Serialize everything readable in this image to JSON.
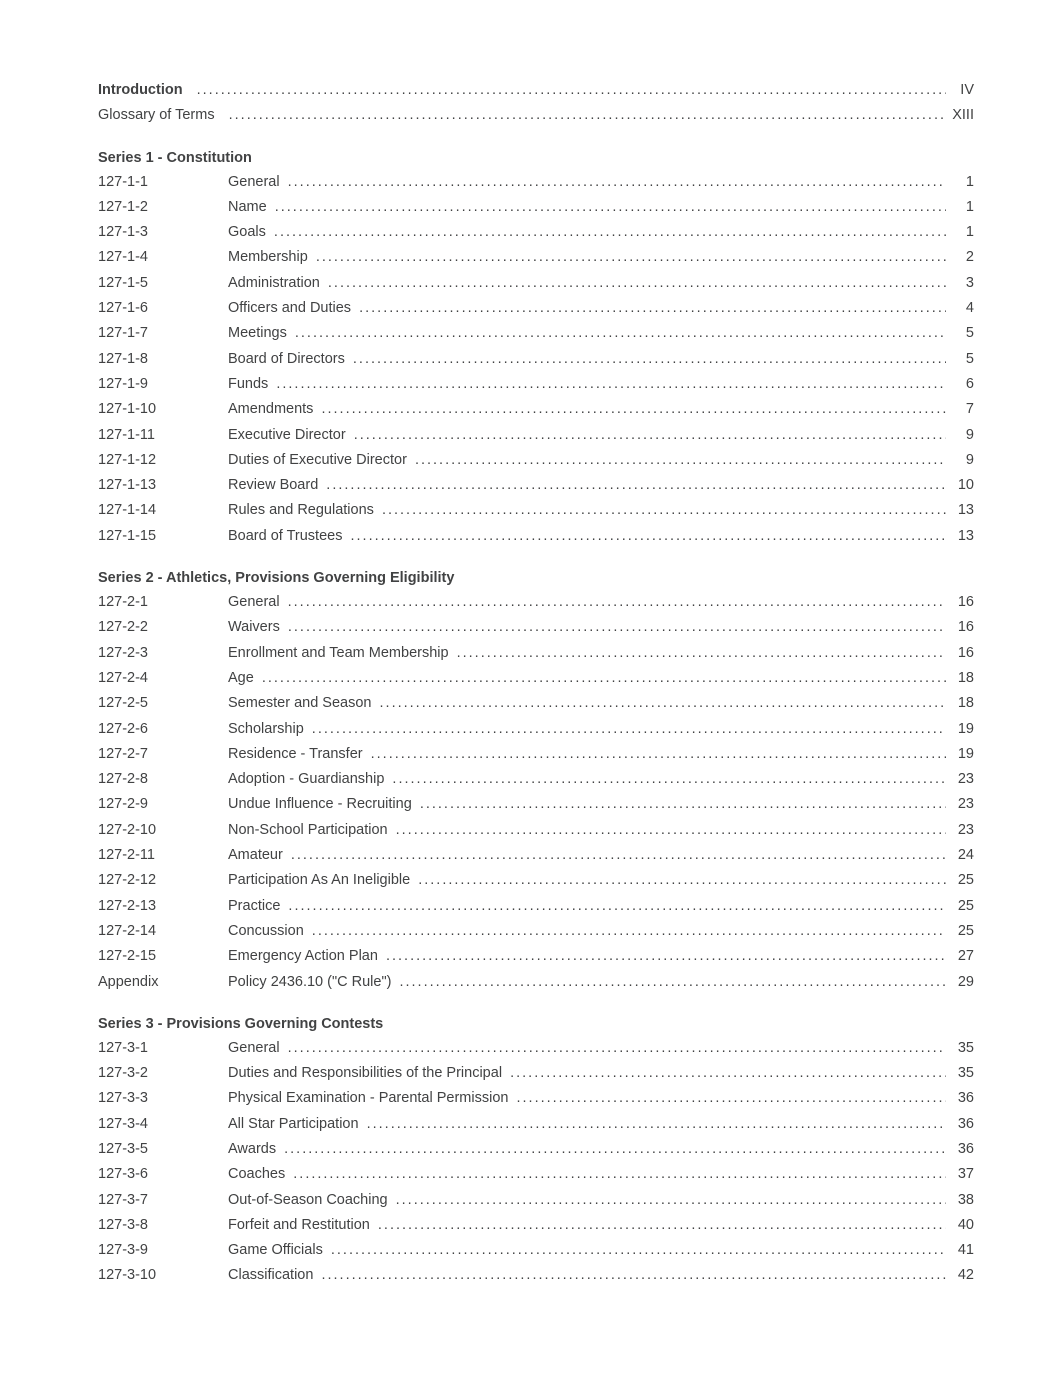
{
  "colors": {
    "text": "#414243",
    "background": "#ffffff"
  },
  "typography": {
    "font_family": "Arial, Helvetica, sans-serif",
    "base_fontsize_pt": 11,
    "heading_weight": 700,
    "body_weight": 400
  },
  "intro": [
    {
      "label": "Introduction",
      "bold": true,
      "page": "IV"
    },
    {
      "label": "Glossary of Terms",
      "bold": false,
      "page": "XIII"
    }
  ],
  "sections": [
    {
      "title": "Series 1 - Constitution",
      "entries": [
        {
          "code": "127-1-1",
          "title": "General",
          "page": "1"
        },
        {
          "code": "127-1-2",
          "title": "Name",
          "page": "1"
        },
        {
          "code": "127-1-3",
          "title": "Goals",
          "page": "1"
        },
        {
          "code": "127-1-4",
          "title": "Membership",
          "page": "2"
        },
        {
          "code": "127-1-5",
          "title": "Administration",
          "page": "3"
        },
        {
          "code": "127-1-6",
          "title": "Officers and Duties",
          "page": "4"
        },
        {
          "code": "127-1-7",
          "title": "Meetings",
          "page": "5"
        },
        {
          "code": "127-1-8",
          "title": "Board of Directors",
          "page": "5"
        },
        {
          "code": "127-1-9",
          "title": "Funds",
          "page": "6"
        },
        {
          "code": "127-1-10",
          "title": "Amendments",
          "page": "7"
        },
        {
          "code": "127-1-11",
          "title": "Executive Director",
          "page": "9"
        },
        {
          "code": "127-1-12",
          "title": "Duties of Executive Director",
          "page": "9"
        },
        {
          "code": "127-1-13",
          "title": "Review Board",
          "page": "10"
        },
        {
          "code": "127-1-14",
          "title": "Rules and Regulations",
          "page": "13"
        },
        {
          "code": "127-1-15",
          "title": "Board of Trustees",
          "page": "13"
        }
      ]
    },
    {
      "title": "Series 2 - Athletics, Provisions Governing Eligibility",
      "entries": [
        {
          "code": "127-2-1",
          "title": "General",
          "page": "16"
        },
        {
          "code": "127-2-2",
          "title": "Waivers",
          "page": "16"
        },
        {
          "code": "127-2-3",
          "title": "Enrollment and Team Membership",
          "page": "16"
        },
        {
          "code": "127-2-4",
          "title": "Age",
          "page": "18"
        },
        {
          "code": "127-2-5",
          "title": "Semester and Season",
          "page": "18"
        },
        {
          "code": "127-2-6",
          "title": "Scholarship",
          "page": "19"
        },
        {
          "code": "127-2-7",
          "title": "Residence - Transfer",
          "page": "19"
        },
        {
          "code": "127-2-8",
          "title": "Adoption - Guardianship",
          "page": "23"
        },
        {
          "code": "127-2-9",
          "title": "Undue Influence - Recruiting",
          "page": "23"
        },
        {
          "code": "127-2-10",
          "title": "Non-School Participation",
          "page": "23"
        },
        {
          "code": "127-2-11",
          "title": "Amateur",
          "page": "24"
        },
        {
          "code": "127-2-12",
          "title": "Participation As An Ineligible",
          "page": "25"
        },
        {
          "code": "127-2-13",
          "title": "Practice",
          "page": "25"
        },
        {
          "code": "127-2-14",
          "title": "Concussion",
          "page": "25"
        },
        {
          "code": "127-2-15",
          "title": "Emergency Action Plan",
          "page": "27"
        },
        {
          "code": "Appendix",
          "title": "Policy 2436.10 (\"C Rule\")",
          "page": "29"
        }
      ]
    },
    {
      "title": "Series 3 - Provisions Governing Contests",
      "entries": [
        {
          "code": "127-3-1",
          "title": "General",
          "page": "35"
        },
        {
          "code": "127-3-2",
          "title": "Duties and Responsibilities of the Principal",
          "page": "35"
        },
        {
          "code": "127-3-3",
          "title": "Physical Examination - Parental Permission",
          "page": "36"
        },
        {
          "code": "127-3-4",
          "title": "All Star Participation",
          "page": "36"
        },
        {
          "code": "127-3-5",
          "title": "Awards",
          "page": "36"
        },
        {
          "code": "127-3-6",
          "title": "Coaches",
          "page": "37"
        },
        {
          "code": "127-3-7",
          "title": "Out-of-Season Coaching",
          "page": "38"
        },
        {
          "code": "127-3-8",
          "title": "Forfeit and Restitution",
          "page": "40"
        },
        {
          "code": "127-3-9",
          "title": "Game Officials",
          "page": "41"
        },
        {
          "code": "127-3-10",
          "title": "Classification",
          "page": "42"
        }
      ]
    }
  ]
}
